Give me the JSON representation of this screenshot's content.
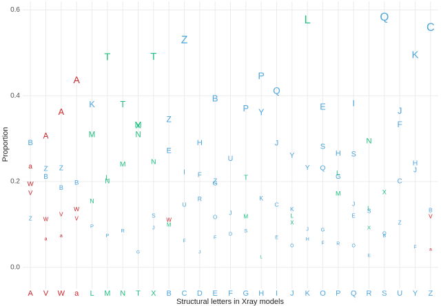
{
  "chart_data": {
    "type": "letter-scatter",
    "x_label": "Structural letters in Xray models",
    "y_label": "Proportion",
    "categories": [
      "A",
      "V",
      "W",
      "a",
      "L",
      "M",
      "N",
      "T",
      "X",
      "B",
      "C",
      "D",
      "E",
      "F",
      "G",
      "H",
      "I",
      "J",
      "K",
      "O",
      "P",
      "Q",
      "R",
      "S",
      "U",
      "Y",
      "Z"
    ],
    "category_colors": [
      "#c8262b",
      "#c8262b",
      "#c8262b",
      "#c8262b",
      "#1fbf7f",
      "#1fbf7f",
      "#1fbf7f",
      "#1fbf7f",
      "#1fbf7f",
      "#4fa6dc",
      "#4fa6dc",
      "#4fa6dc",
      "#4fa6dc",
      "#4fa6dc",
      "#4fa6dc",
      "#4fa6dc",
      "#4fa6dc",
      "#4fa6dc",
      "#4fa6dc",
      "#4fa6dc",
      "#4fa6dc",
      "#4fa6dc",
      "#4fa6dc",
      "#4fa6dc",
      "#4fa6dc",
      "#4fa6dc",
      "#4fa6dc"
    ],
    "ylim": [
      -0.05,
      0.62
    ],
    "yticks": [
      {
        "value": 0,
        "label": "0.0"
      },
      {
        "value": 0.2,
        "label": "0.2"
      },
      {
        "value": 0.4,
        "label": "0.4"
      },
      {
        "value": 0.6,
        "label": "0.6"
      }
    ],
    "grid": true,
    "points": [
      {
        "x": "A",
        "label": "B",
        "y": 0.29
      },
      {
        "x": "A",
        "label": "a",
        "y": 0.235
      },
      {
        "x": "A",
        "label": "W",
        "y": 0.194
      },
      {
        "x": "A",
        "label": "V",
        "y": 0.173
      },
      {
        "x": "A",
        "label": "Z",
        "y": 0.113
      },
      {
        "x": "V",
        "label": "A",
        "y": 0.305
      },
      {
        "x": "V",
        "label": "Z",
        "y": 0.229
      },
      {
        "x": "V",
        "label": "B",
        "y": 0.211
      },
      {
        "x": "V",
        "label": "W",
        "y": 0.111
      },
      {
        "x": "V",
        "label": "a",
        "y": 0.066
      },
      {
        "x": "W",
        "label": "A",
        "y": 0.361
      },
      {
        "x": "W",
        "label": "Z",
        "y": 0.231
      },
      {
        "x": "W",
        "label": "B",
        "y": 0.185
      },
      {
        "x": "W",
        "label": "V",
        "y": 0.123
      },
      {
        "x": "W",
        "label": "a",
        "y": 0.073
      },
      {
        "x": "a",
        "label": "A",
        "y": 0.435
      },
      {
        "x": "a",
        "label": "B",
        "y": 0.197
      },
      {
        "x": "a",
        "label": "W",
        "y": 0.135
      },
      {
        "x": "a",
        "label": "V",
        "y": 0.113
      },
      {
        "x": "L",
        "label": "K",
        "y": 0.379
      },
      {
        "x": "L",
        "label": "M",
        "y": 0.308
      },
      {
        "x": "L",
        "label": "N",
        "y": 0.153
      },
      {
        "x": "L",
        "label": "P",
        "y": 0.095
      },
      {
        "x": "M",
        "label": "T",
        "y": 0.489
      },
      {
        "x": "M",
        "label": "L",
        "y": 0.208
      },
      {
        "x": "M",
        "label": "N",
        "y": 0.2
      },
      {
        "x": "M",
        "label": "P",
        "y": 0.073
      },
      {
        "x": "N",
        "label": "T",
        "y": 0.379
      },
      {
        "x": "N",
        "label": "M",
        "y": 0.24
      },
      {
        "x": "N",
        "label": "R",
        "y": 0.085
      },
      {
        "x": "T",
        "label": "M",
        "y": 0.331
      },
      {
        "x": "T",
        "label": "X",
        "y": 0.329
      },
      {
        "x": "T",
        "label": "N",
        "y": 0.308
      },
      {
        "x": "T",
        "label": "G",
        "y": 0.035
      },
      {
        "x": "X",
        "label": "T",
        "y": 0.49
      },
      {
        "x": "X",
        "label": "N",
        "y": 0.245
      },
      {
        "x": "X",
        "label": "S",
        "y": 0.119
      },
      {
        "x": "X",
        "label": "J",
        "y": 0.092
      },
      {
        "x": "B",
        "label": "Z",
        "y": 0.344
      },
      {
        "x": "B",
        "label": "E",
        "y": 0.271
      },
      {
        "x": "B",
        "label": "W",
        "y": 0.11
      },
      {
        "x": "B",
        "label": "M",
        "y": 0.098
      },
      {
        "x": "C",
        "label": "Z",
        "y": 0.529
      },
      {
        "x": "C",
        "label": "I",
        "y": 0.221
      },
      {
        "x": "C",
        "label": "U",
        "y": 0.145
      },
      {
        "x": "C",
        "label": "F",
        "y": 0.061
      },
      {
        "x": "D",
        "label": "H",
        "y": 0.29
      },
      {
        "x": "D",
        "label": "F",
        "y": 0.215
      },
      {
        "x": "D",
        "label": "R",
        "y": 0.158
      },
      {
        "x": "D",
        "label": "J",
        "y": 0.035
      },
      {
        "x": "E",
        "label": "B",
        "y": 0.392
      },
      {
        "x": "E",
        "label": "Z",
        "y": 0.2
      },
      {
        "x": "E",
        "label": "G",
        "y": 0.195
      },
      {
        "x": "E",
        "label": "O",
        "y": 0.116
      },
      {
        "x": "E",
        "label": "F",
        "y": 0.069
      },
      {
        "x": "F",
        "label": "U",
        "y": 0.253
      },
      {
        "x": "F",
        "label": "J",
        "y": 0.126
      },
      {
        "x": "F",
        "label": "D",
        "y": 0.077
      },
      {
        "x": "G",
        "label": "P",
        "y": 0.369
      },
      {
        "x": "G",
        "label": "T",
        "y": 0.208
      },
      {
        "x": "G",
        "label": "M",
        "y": 0.118
      },
      {
        "x": "G",
        "label": "S",
        "y": 0.085
      },
      {
        "x": "H",
        "label": "P",
        "y": 0.445
      },
      {
        "x": "H",
        "label": "Y",
        "y": 0.36
      },
      {
        "x": "H",
        "label": "K",
        "y": 0.16
      },
      {
        "x": "H",
        "label": "L",
        "y": 0.024
      },
      {
        "x": "I",
        "label": "Q",
        "y": 0.41
      },
      {
        "x": "I",
        "label": "J",
        "y": 0.289
      },
      {
        "x": "I",
        "label": "C",
        "y": 0.145
      },
      {
        "x": "I",
        "label": "E",
        "y": 0.069
      },
      {
        "x": "J",
        "label": "Y",
        "y": 0.26
      },
      {
        "x": "J",
        "label": "K",
        "y": 0.135
      },
      {
        "x": "J",
        "label": "L",
        "y": 0.119
      },
      {
        "x": "J",
        "label": "X",
        "y": 0.103
      },
      {
        "x": "J",
        "label": "O",
        "y": 0.05
      },
      {
        "x": "K",
        "label": "L",
        "y": 0.576
      },
      {
        "x": "K",
        "label": "Y",
        "y": 0.232
      },
      {
        "x": "K",
        "label": "J",
        "y": 0.089
      },
      {
        "x": "K",
        "label": "H",
        "y": 0.065
      },
      {
        "x": "O",
        "label": "E",
        "y": 0.373
      },
      {
        "x": "O",
        "label": "S",
        "y": 0.281
      },
      {
        "x": "O",
        "label": "Q",
        "y": 0.231
      },
      {
        "x": "O",
        "label": "G",
        "y": 0.087
      },
      {
        "x": "O",
        "label": "F",
        "y": 0.056
      },
      {
        "x": "P",
        "label": "H",
        "y": 0.265
      },
      {
        "x": "P",
        "label": "L",
        "y": 0.219
      },
      {
        "x": "P",
        "label": "G",
        "y": 0.211
      },
      {
        "x": "P",
        "label": "M",
        "y": 0.171
      },
      {
        "x": "P",
        "label": "R",
        "y": 0.055
      },
      {
        "x": "Q",
        "label": "I",
        "y": 0.381
      },
      {
        "x": "Q",
        "label": "S",
        "y": 0.263
      },
      {
        "x": "Q",
        "label": "J",
        "y": 0.147
      },
      {
        "x": "Q",
        "label": "E",
        "y": 0.119
      },
      {
        "x": "Q",
        "label": "O",
        "y": 0.05
      },
      {
        "x": "R",
        "label": "N",
        "y": 0.294
      },
      {
        "x": "R",
        "label": "L",
        "y": 0.137
      },
      {
        "x": "R",
        "label": "S",
        "y": 0.131
      },
      {
        "x": "R",
        "label": "X",
        "y": 0.092
      },
      {
        "x": "R",
        "label": "E",
        "y": 0.027
      },
      {
        "x": "S",
        "label": "Q",
        "y": 0.582
      },
      {
        "x": "S",
        "label": "X",
        "y": 0.174
      },
      {
        "x": "S",
        "label": "O",
        "y": 0.079
      },
      {
        "x": "S",
        "label": "B",
        "y": 0.073
      },
      {
        "x": "U",
        "label": "J",
        "y": 0.363
      },
      {
        "x": "U",
        "label": "F",
        "y": 0.332
      },
      {
        "x": "U",
        "label": "C",
        "y": 0.2
      },
      {
        "x": "U",
        "label": "Z",
        "y": 0.103
      },
      {
        "x": "Y",
        "label": "K",
        "y": 0.494
      },
      {
        "x": "Y",
        "label": "H",
        "y": 0.242
      },
      {
        "x": "Y",
        "label": "J",
        "y": 0.226
      },
      {
        "x": "Y",
        "label": "F",
        "y": 0.047
      },
      {
        "x": "Z",
        "label": "C",
        "y": 0.558
      },
      {
        "x": "Z",
        "label": "B",
        "y": 0.132
      },
      {
        "x": "Z",
        "label": "V",
        "y": 0.118
      },
      {
        "x": "Z",
        "label": "a",
        "y": 0.042
      }
    ]
  }
}
